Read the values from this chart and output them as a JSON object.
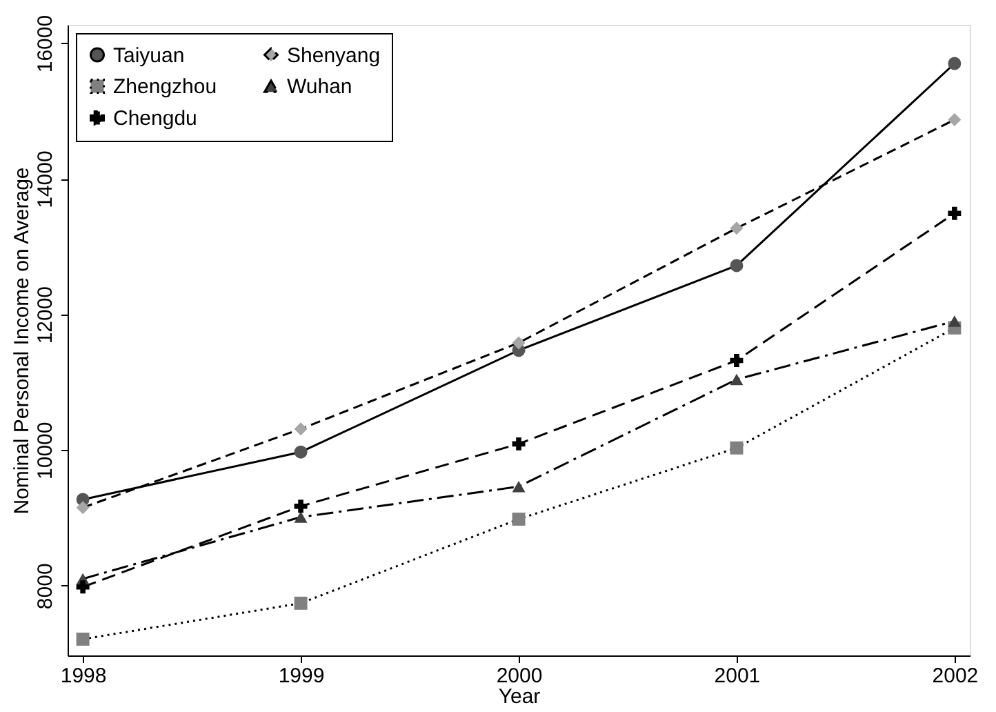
{
  "chart_data": {
    "type": "line",
    "xlabel": "Year",
    "ylabel": "Nominal Personal Income on Average",
    "x": [
      1998,
      1999,
      2000,
      2001,
      2002
    ],
    "xlim": [
      1997.93,
      2002.07
    ],
    "xticks": [
      1998,
      1999,
      2000,
      2001,
      2002
    ],
    "ylim": [
      6970,
      16270
    ],
    "yticks": [
      {
        "value": 8000,
        "label": "8000"
      },
      {
        "value": 10000,
        "label": "10000"
      },
      {
        "value": 12000,
        "label": "12000"
      },
      {
        "value": 14000,
        "label": "14000"
      },
      {
        "value": 16000,
        "label": "16000"
      }
    ],
    "grid": false,
    "legend": "top left",
    "series": [
      {
        "name": "Taiyuan",
        "color": "#555555",
        "marker": "circle",
        "line_style": "solid",
        "values": [
          9270,
          9970,
          11470,
          12720,
          15700
        ]
      },
      {
        "name": "Shenyang",
        "color": "#a6a6a6",
        "marker": "diamond",
        "line_style": "dashed",
        "values": [
          9150,
          10310,
          11580,
          13270,
          14870
        ]
      },
      {
        "name": "Zhengzhou",
        "color": "#808080",
        "marker": "square",
        "line_style": "dotted",
        "values": [
          7210,
          7740,
          8980,
          10030,
          11800
        ]
      },
      {
        "name": "Wuhan",
        "color": "#404040",
        "marker": "triangle",
        "line_style": "dashdot",
        "values": [
          8100,
          9010,
          9460,
          11040,
          11900
        ]
      },
      {
        "name": "Chengdu",
        "color": "#000000",
        "marker": "cross",
        "line_style": "longdash",
        "values": [
          7980,
          9170,
          10090,
          11320,
          13490
        ]
      }
    ]
  }
}
